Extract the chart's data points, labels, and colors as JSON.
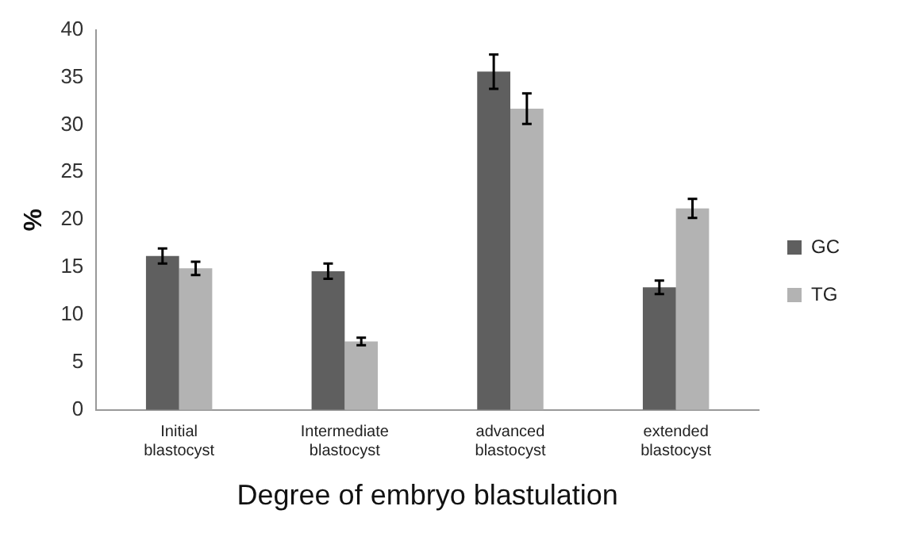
{
  "chart_data": {
    "type": "bar",
    "xlabel": "Degree of embryo blastulation",
    "ylabel": "%",
    "categories": [
      "Initial blastocyst",
      "Intermediate blastocyst",
      "advanced blastocyst",
      "extended blastocyst"
    ],
    "series": [
      {
        "name": "GC",
        "color": "#5f5f5f",
        "values": [
          16.2,
          14.6,
          35.6,
          12.9
        ],
        "errors": [
          0.8,
          0.8,
          1.8,
          0.7
        ]
      },
      {
        "name": "TG",
        "color": "#b3b3b3",
        "values": [
          14.9,
          7.2,
          31.7,
          21.2
        ],
        "errors": [
          0.7,
          0.4,
          1.6,
          1.0
        ]
      }
    ],
    "ylim": [
      0,
      40
    ],
    "yticks": [
      0,
      5,
      10,
      15,
      20,
      25,
      30,
      35,
      40
    ],
    "grid": false,
    "legend": "right"
  }
}
